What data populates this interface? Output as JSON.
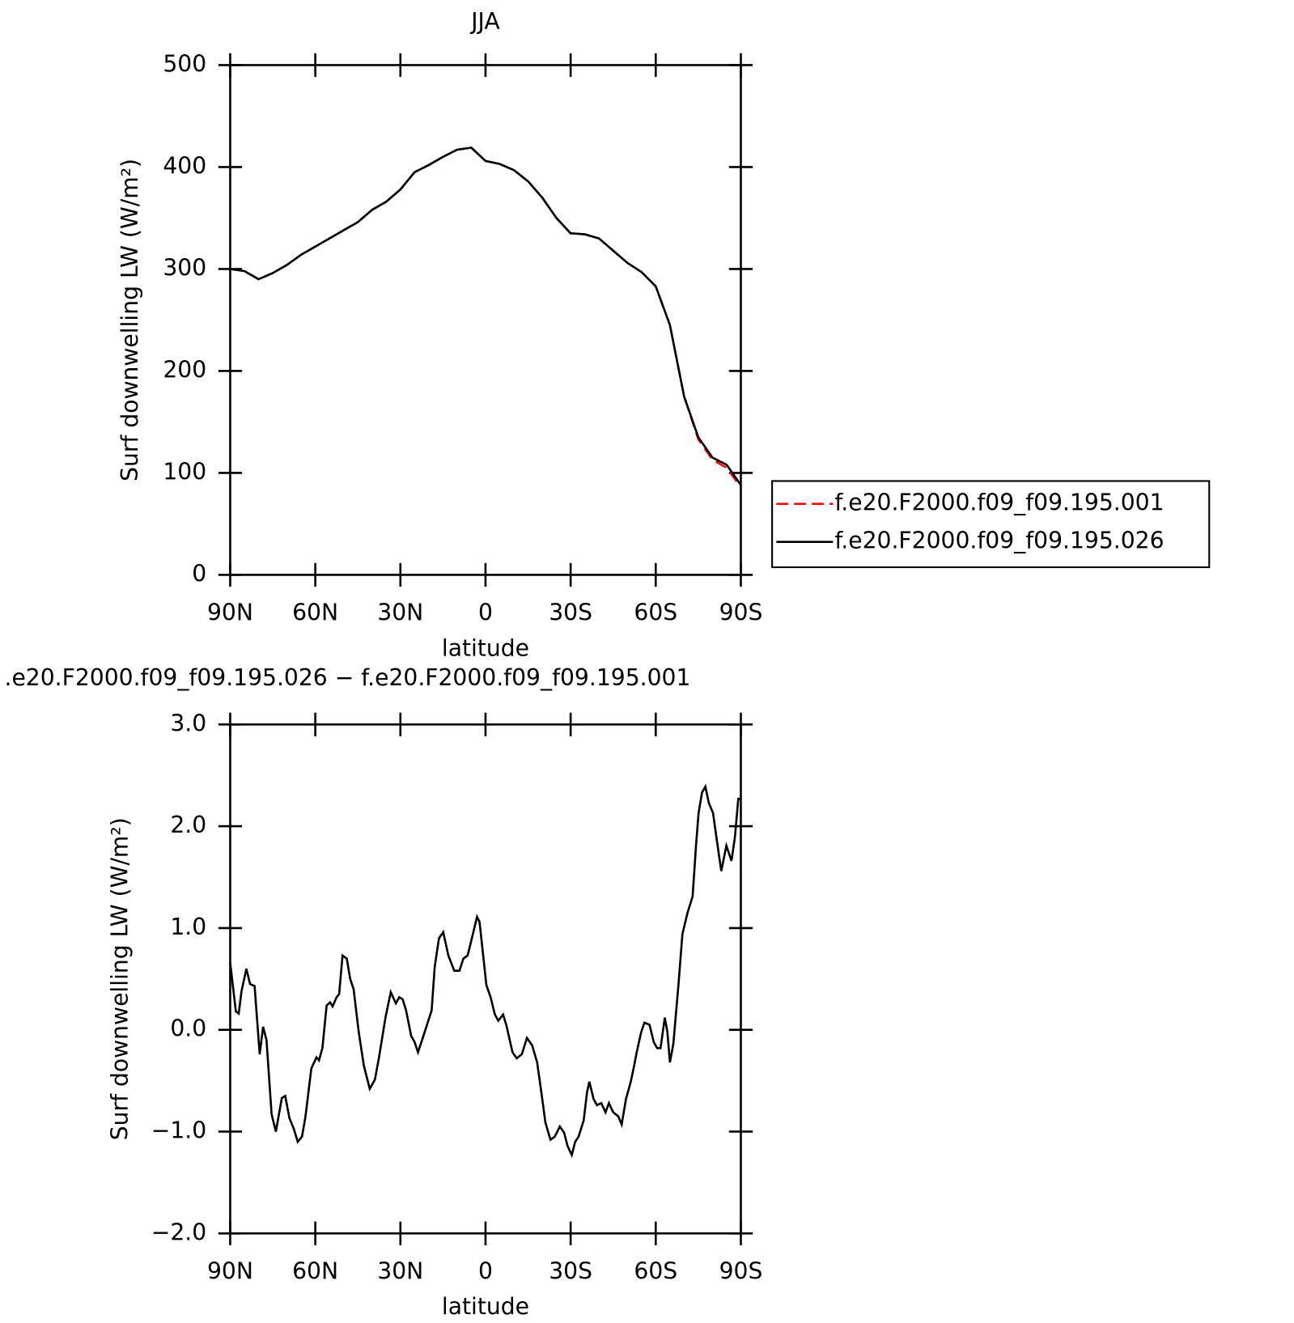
{
  "chart_data": [
    {
      "type": "line",
      "title": "JJA",
      "xlabel": "latitude",
      "ylabel": "Surf downwelling LW (W/m²)",
      "x": [
        90,
        85,
        80,
        75,
        70,
        65,
        60,
        55,
        50,
        45,
        40,
        35,
        30,
        25,
        20,
        15,
        10,
        5,
        0,
        -5,
        -10,
        -15,
        -20,
        -25,
        -30,
        -35,
        -40,
        -45,
        -50,
        -55,
        -60,
        -65,
        -70,
        -75,
        -80,
        -85,
        -90
      ],
      "series": [
        {
          "name": "f.e20.F2000.f09_f09.195.001",
          "color": "#ff0000",
          "line_style": "dashed",
          "values": [
            300,
            298,
            290,
            296,
            304,
            314,
            322,
            330,
            338,
            346,
            358,
            366,
            378,
            395,
            402,
            410,
            417,
            419,
            406,
            403,
            397,
            386,
            370,
            350,
            335,
            334,
            330,
            318,
            306,
            297,
            283,
            245,
            175,
            133,
            113,
            105,
            86
          ]
        },
        {
          "name": "f.e20.F2000.f09_f09.195.026",
          "color": "#000000",
          "line_style": "solid",
          "values": [
            300,
            298,
            290,
            296,
            304,
            314,
            322,
            330,
            338,
            346,
            358,
            366,
            378,
            395,
            402,
            410,
            417,
            419,
            406,
            403,
            397,
            386,
            370,
            350,
            335,
            334,
            330,
            318,
            306,
            297,
            283,
            245,
            175,
            135,
            115,
            108,
            88
          ]
        }
      ],
      "xlim": [
        90,
        -90
      ],
      "xticks": [
        {
          "value": 90,
          "label": "90N"
        },
        {
          "value": 60,
          "label": "60N"
        },
        {
          "value": 30,
          "label": "30N"
        },
        0,
        {
          "value": -30,
          "label": "30S"
        },
        {
          "value": -60,
          "label": "60S"
        },
        {
          "value": -90,
          "label": "90S"
        }
      ],
      "ylim": [
        0,
        500
      ],
      "yticks": [
        0,
        100,
        200,
        300,
        400,
        500
      ],
      "legend": "right",
      "grid": false
    },
    {
      "type": "line",
      "title": ".e20.F2000.f09_f09.195.026 − f.e20.F2000.f09_f09.195.001",
      "xlabel": "latitude",
      "ylabel": "Surf downwelling LW (W/m²)",
      "color": "#000000",
      "x": [
        90,
        88,
        87,
        86,
        84.3,
        83,
        81.4,
        79.6,
        78.4,
        77.2,
        75.4,
        73.9,
        71.8,
        70.6,
        69.1,
        67.6,
        66.2,
        64.7,
        63.5,
        61.4,
        59.6,
        58.7,
        57.5,
        56,
        54.8,
        53.9,
        52.5,
        51.6,
        50.4,
        48.9,
        47.7,
        46.5,
        44.7,
        42.9,
        40.8,
        39,
        37.6,
        35.2,
        33.4,
        31.6,
        30.4,
        29.2,
        28,
        26.2,
        25,
        23.8,
        22.6,
        21.2,
        19,
        17.9,
        16.4,
        14.9,
        13.1,
        11,
        9.2,
        7.8,
        6.3,
        4.8,
        3,
        2.1,
        -0.3,
        -1.8,
        -3.3,
        -4.5,
        -6.2,
        -7.4,
        -9.5,
        -11,
        -12.8,
        -14.6,
        -16.4,
        -18.2,
        -20,
        -21.1,
        -22.9,
        -24.4,
        -26.2,
        -27.7,
        -28.9,
        -30.4,
        -31.6,
        -32.8,
        -34.6,
        -35.8,
        -36.6,
        -38.1,
        -39.3,
        -40.8,
        -42.3,
        -43.5,
        -45,
        -46.8,
        -48,
        -49.5,
        -51.2,
        -52.4,
        -53.3,
        -54.8,
        -56,
        -57.8,
        -59.3,
        -60.5,
        -61.7,
        -63.2,
        -64.1,
        -65,
        -66.2,
        -68,
        -69.4,
        -71.2,
        -73,
        -74.2,
        -75.1,
        -76.3,
        -77.5,
        -78.7,
        -80.2,
        -81.6,
        -83.1,
        -84.9,
        -86.7,
        -87.9,
        -89.1,
        -90
      ],
      "values": [
        0.66,
        0.18,
        0.16,
        0.38,
        0.6,
        0.45,
        0.43,
        -0.24,
        0.03,
        -0.1,
        -0.83,
        -1.0,
        -0.67,
        -0.65,
        -0.87,
        -0.97,
        -1.1,
        -1.05,
        -0.86,
        -0.38,
        -0.27,
        -0.3,
        -0.18,
        0.24,
        0.27,
        0.23,
        0.32,
        0.35,
        0.73,
        0.7,
        0.5,
        0.4,
        -0.02,
        -0.35,
        -0.58,
        -0.49,
        -0.28,
        0.13,
        0.37,
        0.26,
        0.32,
        0.3,
        0.19,
        -0.06,
        -0.12,
        -0.22,
        -0.12,
        0.0,
        0.19,
        0.62,
        0.9,
        0.96,
        0.73,
        0.58,
        0.58,
        0.7,
        0.73,
        0.9,
        1.11,
        1.06,
        0.44,
        0.32,
        0.15,
        0.09,
        0.15,
        0.04,
        -0.22,
        -0.28,
        -0.24,
        -0.08,
        -0.15,
        -0.32,
        -0.68,
        -0.91,
        -1.08,
        -1.05,
        -0.95,
        -1.01,
        -1.14,
        -1.23,
        -1.1,
        -1.05,
        -0.89,
        -0.61,
        -0.51,
        -0.68,
        -0.74,
        -0.72,
        -0.81,
        -0.72,
        -0.81,
        -0.85,
        -0.93,
        -0.68,
        -0.51,
        -0.35,
        -0.22,
        -0.03,
        0.07,
        0.05,
        -0.12,
        -0.18,
        -0.18,
        0.12,
        -0.02,
        -0.32,
        -0.14,
        0.44,
        0.94,
        1.15,
        1.31,
        1.81,
        2.13,
        2.33,
        2.39,
        2.23,
        2.13,
        1.85,
        1.56,
        1.81,
        1.66,
        1.89,
        2.27,
        2.27
      ],
      "xlim": [
        90,
        -90
      ],
      "xticks": [
        {
          "value": 90,
          "label": "90N"
        },
        {
          "value": 60,
          "label": "60N"
        },
        {
          "value": 30,
          "label": "30N"
        },
        0,
        {
          "value": -30,
          "label": "30S"
        },
        {
          "value": -60,
          "label": "60S"
        },
        {
          "value": -90,
          "label": "90S"
        }
      ],
      "ylim": [
        -2,
        3
      ],
      "yticks": [
        {
          "value": -2,
          "label": "−2.0"
        },
        {
          "value": -1,
          "label": "−1.0"
        },
        {
          "value": 0,
          "label": "0.0"
        },
        {
          "value": 1,
          "label": "1.0"
        },
        {
          "value": 2,
          "label": "2.0"
        },
        {
          "value": 3,
          "label": "3.0"
        }
      ],
      "grid": false
    }
  ]
}
